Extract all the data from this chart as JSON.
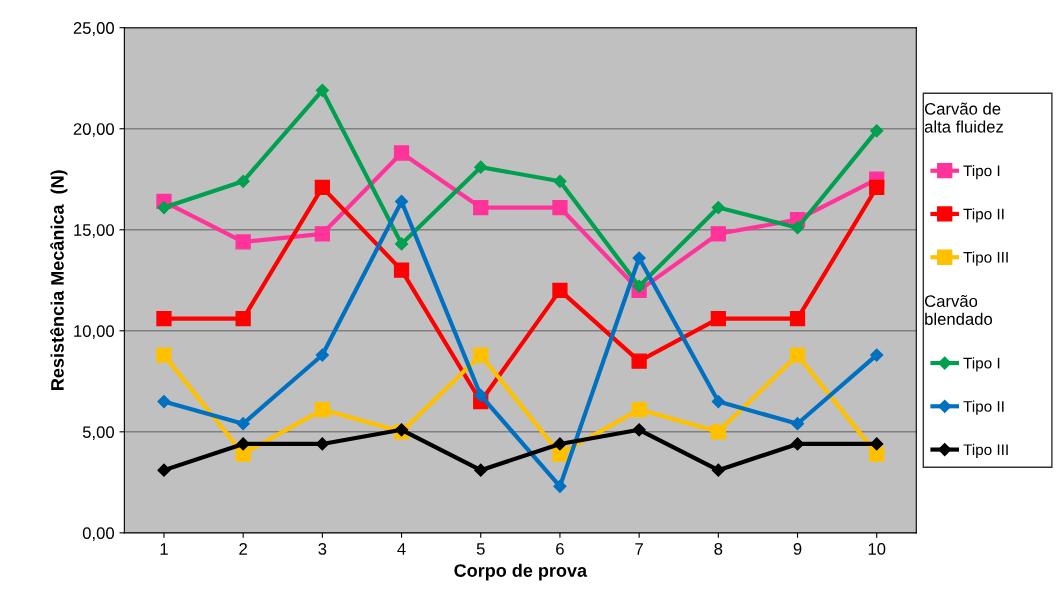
{
  "chart_data": {
    "type": "line",
    "xlabel": "Corpo de prova",
    "ylabel": "Resistência Mecânica  (N)",
    "categories": [
      "1",
      "2",
      "3",
      "4",
      "5",
      "6",
      "7",
      "8",
      "9",
      "10"
    ],
    "ylim": [
      0,
      25
    ],
    "yticks": [
      {
        "value": 0,
        "label": "0,00"
      },
      {
        "value": 5,
        "label": "5,00"
      },
      {
        "value": 10,
        "label": "10,00"
      },
      {
        "value": 15,
        "label": "15,00"
      },
      {
        "value": 20,
        "label": "20,00"
      },
      {
        "value": 25,
        "label": "25,00"
      }
    ],
    "grid": "y",
    "legend": "right",
    "line_style": "solid",
    "annotations": [
      "Carvão de\nalta fluidez",
      "Carvão\nblendado"
    ],
    "series": [
      {
        "name": "Tipo I",
        "color": "#ff3399",
        "marker": "square",
        "values": [
          16.4,
          14.4,
          14.8,
          18.8,
          16.1,
          16.1,
          12.0,
          14.8,
          15.5,
          17.5
        ]
      },
      {
        "name": "Tipo II",
        "color": "#ff0000",
        "marker": "square",
        "values": [
          10.6,
          10.6,
          17.1,
          13.0,
          6.5,
          12.0,
          8.5,
          10.6,
          10.6,
          17.1
        ]
      },
      {
        "name": "Tipo III",
        "color": "#ffc000",
        "marker": "square",
        "values": [
          8.8,
          3.9,
          6.1,
          5.0,
          8.8,
          3.9,
          6.1,
          5.0,
          8.8,
          3.9
        ]
      },
      {
        "name": "Tipo I",
        "color": "#00a050",
        "marker": "diamond",
        "values": [
          16.1,
          17.4,
          21.9,
          14.3,
          18.1,
          17.4,
          12.2,
          16.1,
          15.1,
          19.9
        ]
      },
      {
        "name": "Tipo II",
        "color": "#0070c0",
        "marker": "diamond",
        "values": [
          6.5,
          5.4,
          8.8,
          16.4,
          6.8,
          2.3,
          13.6,
          6.5,
          5.4,
          8.8
        ]
      },
      {
        "name": "Tipo III",
        "color": "#000000",
        "marker": "diamond",
        "values": [
          3.1,
          4.4,
          4.4,
          5.1,
          3.1,
          4.4,
          5.1,
          3.1,
          4.4,
          4.4
        ]
      }
    ]
  }
}
